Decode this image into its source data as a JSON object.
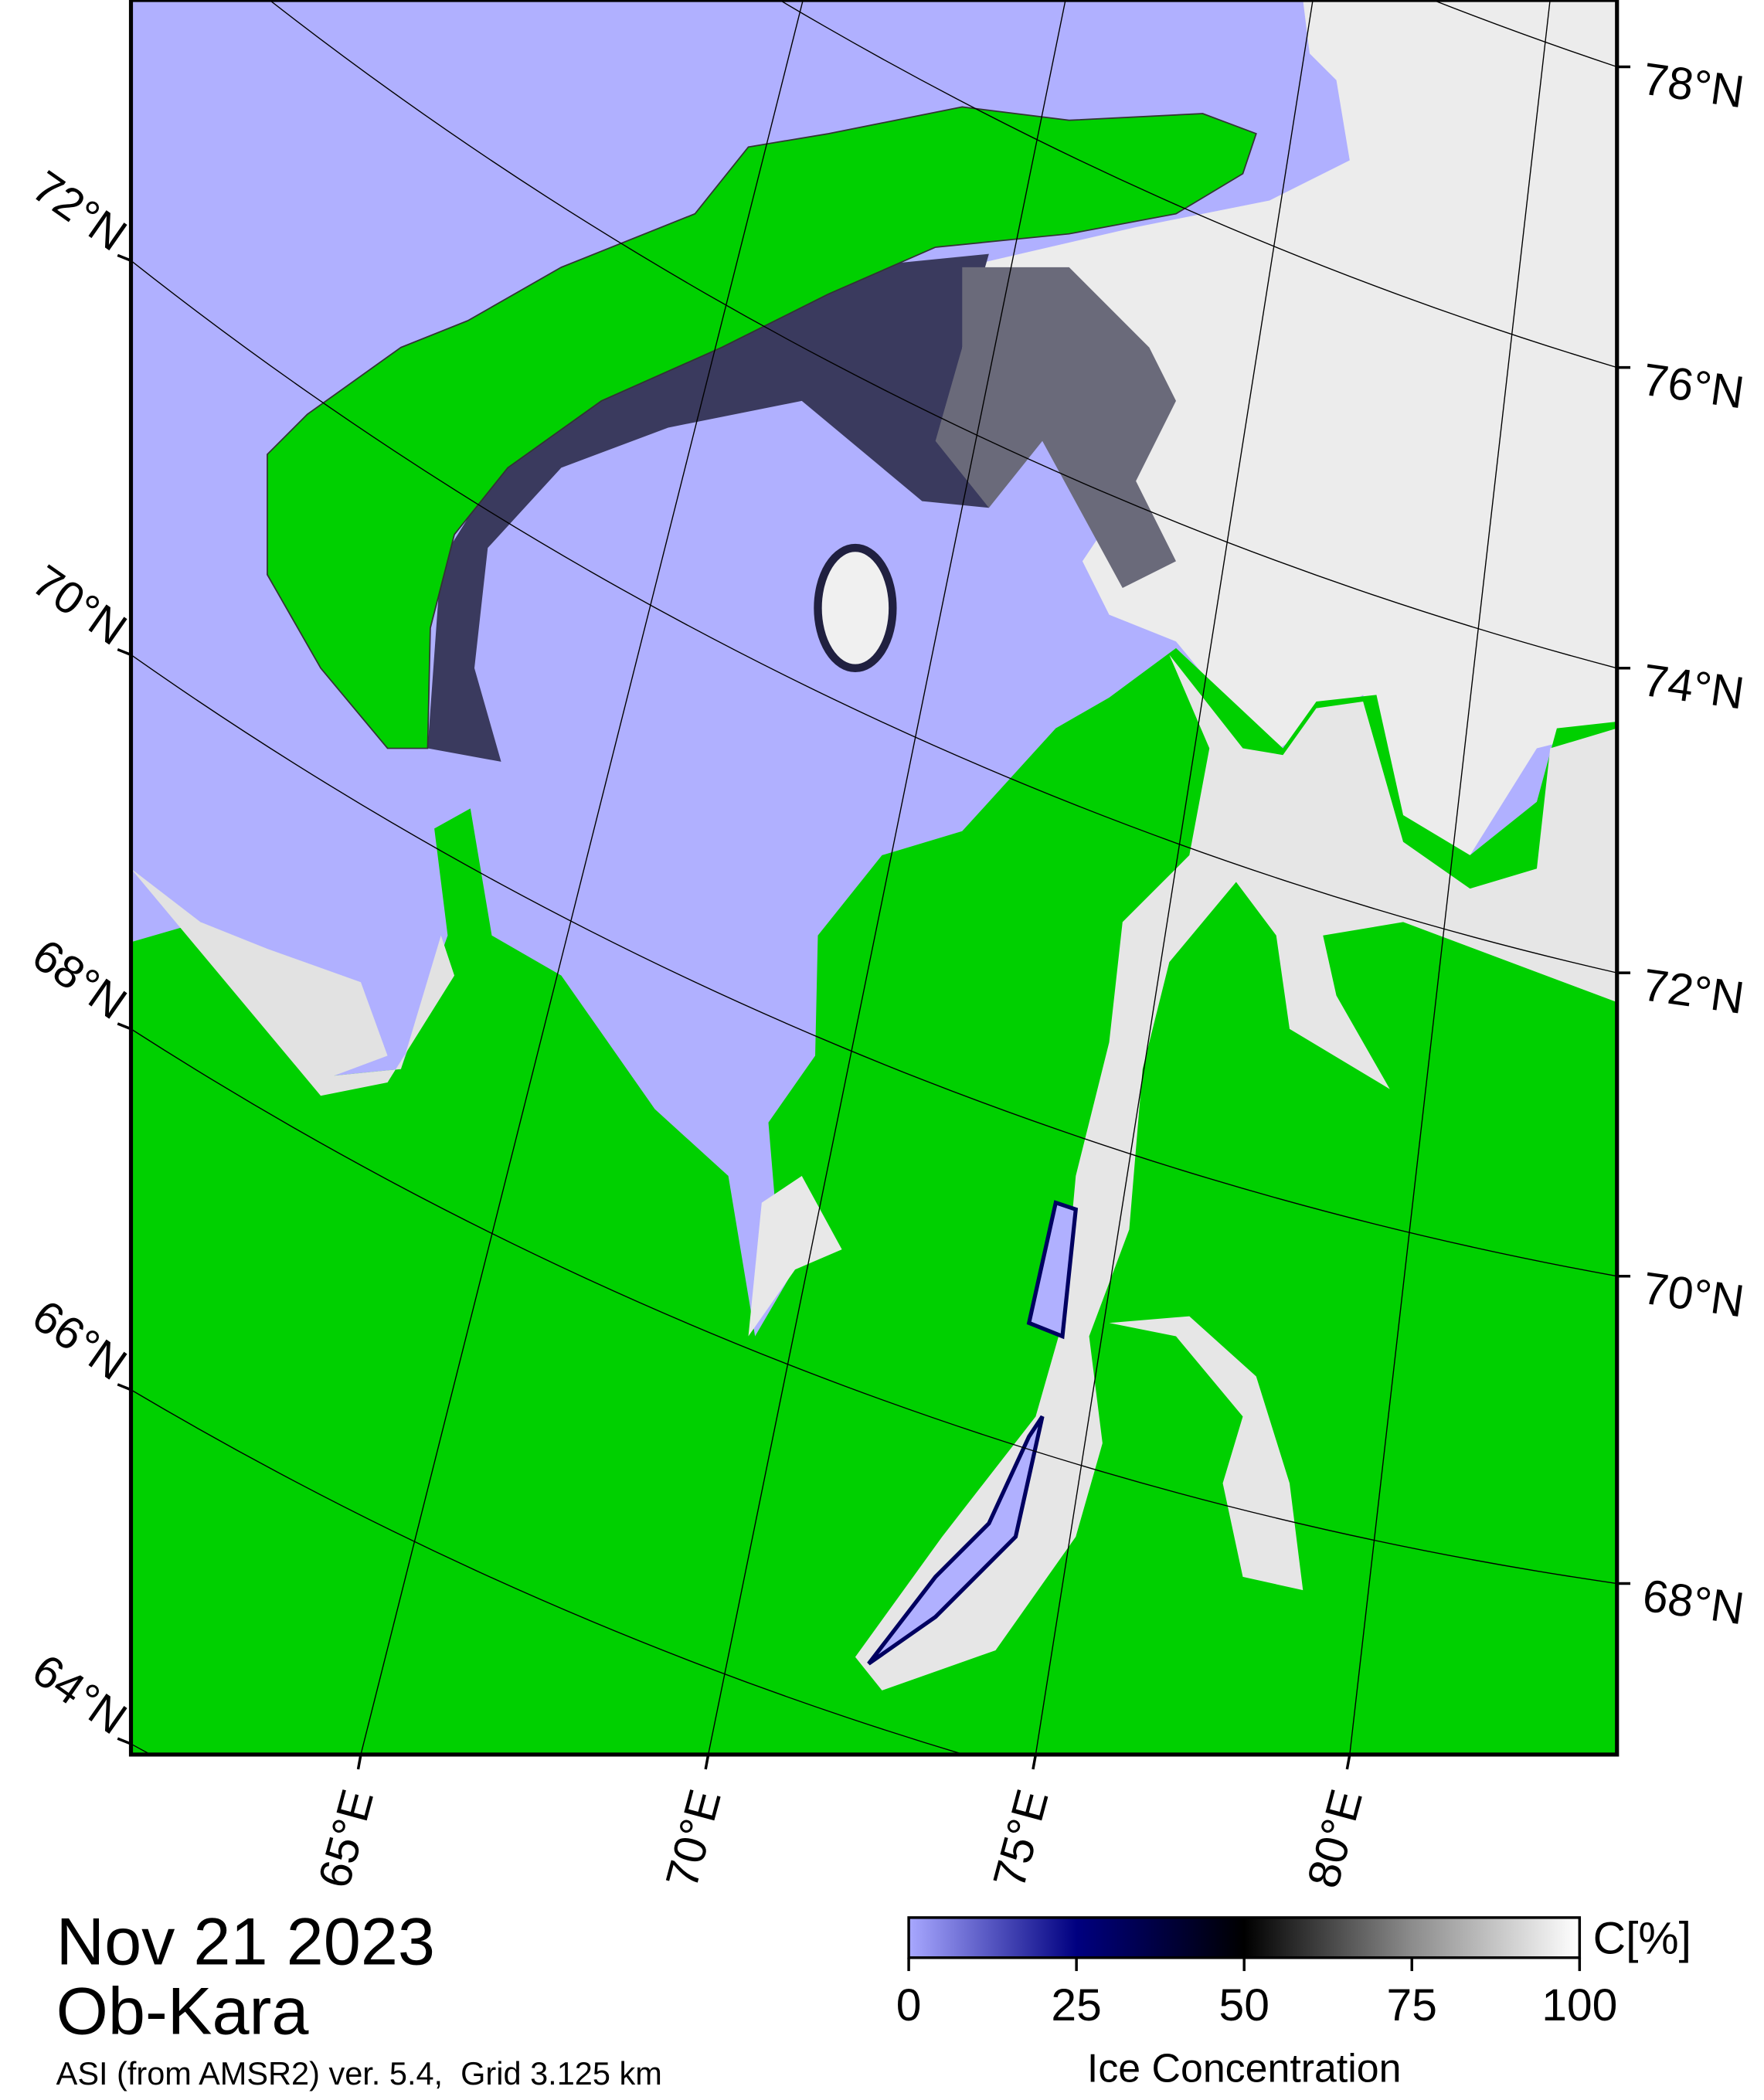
{
  "map": {
    "date": "Nov 21 2023",
    "region": "Ob-Kara",
    "product": "ASI (from AMSR2) ver. 5.4,  Grid 3.125 km",
    "latitude_labels_left": [
      "72°N",
      "70°N",
      "68°N",
      "66°N",
      "64°N"
    ],
    "latitude_labels_right": [
      "78°N",
      "76°N",
      "74°N",
      "72°N",
      "70°N",
      "68°N"
    ],
    "longitude_labels": [
      "65°E",
      "70°E",
      "75°E",
      "80°E"
    ]
  },
  "colorbar": {
    "unit": "C[%]",
    "label": "Ice Concentration",
    "range": [
      0,
      100
    ],
    "ticks": [
      0,
      25,
      50,
      75,
      100
    ]
  }
}
